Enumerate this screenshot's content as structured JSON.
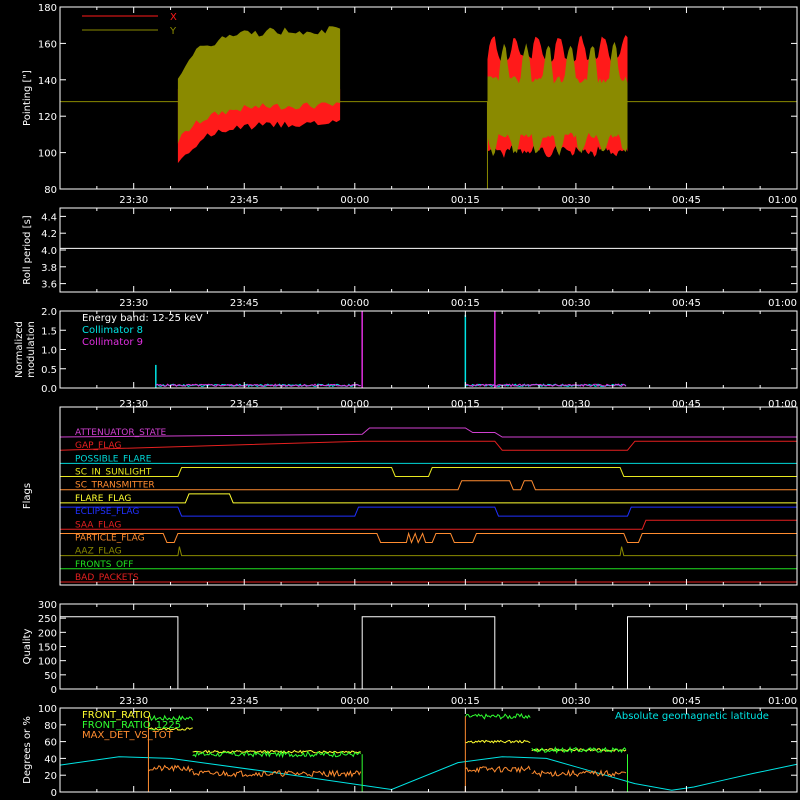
{
  "time_axis": {
    "start": "23:20",
    "end": "01:00",
    "ticks": [
      "23:30",
      "23:45",
      "00:00",
      "00:15",
      "00:30",
      "00:45",
      "01:00"
    ]
  },
  "panels": [
    {
      "id": "pointing",
      "ylabel": "Pointing [\"]",
      "ylim": [
        80,
        180
      ],
      "yticks": [
        "80",
        "100",
        "120",
        "140",
        "160",
        "180"
      ],
      "legend": [
        {
          "name": "X",
          "color": "#ff1a1a"
        },
        {
          "name": "Y",
          "color": "#8a8a00"
        }
      ]
    },
    {
      "id": "roll",
      "ylabel": "Roll period [s]",
      "ylim": [
        3.5,
        4.5
      ],
      "yticks": [
        "3.6",
        "3.8",
        "4.0",
        "4.2",
        "4.4"
      ]
    },
    {
      "id": "modulation",
      "ylabel": [
        "Normalized",
        "modulation"
      ],
      "ylim": [
        0,
        2.0
      ],
      "yticks": [
        "0.0",
        "0.5",
        "1.0",
        "1.5",
        "2.0"
      ],
      "annotations": [
        {
          "text": "Energy band: 12-25 keV",
          "color": "#ffffff"
        },
        {
          "text": "Collimator 8",
          "color": "#00e5e5"
        },
        {
          "text": "Collimator 9",
          "color": "#e030e0"
        }
      ]
    },
    {
      "id": "flags",
      "ylabel": "Flags",
      "flags": [
        {
          "name": "ATTENUATOR_STATE",
          "color": "#d040d0"
        },
        {
          "name": "GAP_FLAG",
          "color": "#e52020"
        },
        {
          "name": "POSSIBLE_FLARE",
          "color": "#00d8d8"
        },
        {
          "name": "SC_IN_SUNLIGHT",
          "color": "#e8e820"
        },
        {
          "name": "SC_TRANSMITTER",
          "color": "#ff8c30"
        },
        {
          "name": "FLARE_FLAG",
          "color": "#ffff30"
        },
        {
          "name": "ECLIPSE_FLAG",
          "color": "#2030ff"
        },
        {
          "name": "SAA_FLAG",
          "color": "#e52020"
        },
        {
          "name": "PARTICLE_FLAG",
          "color": "#ff8c30"
        },
        {
          "name": "AAZ_FLAG",
          "color": "#8a8a00"
        },
        {
          "name": "FRONTS_OFF",
          "color": "#20e020"
        },
        {
          "name": "BAD_PACKETS",
          "color": "#e52020"
        }
      ]
    },
    {
      "id": "quality",
      "ylabel": "Quality",
      "ylim": [
        0,
        300
      ],
      "yticks": [
        "0",
        "50",
        "100",
        "150",
        "200",
        "250",
        "300"
      ]
    },
    {
      "id": "ratios",
      "ylabel": "Degrees or %",
      "ylim": [
        0,
        100
      ],
      "yticks": [
        "0",
        "20",
        "40",
        "60",
        "80",
        "100"
      ],
      "legend": [
        {
          "name": "FRONT_RATIO",
          "color": "#ffff30"
        },
        {
          "name": "FRONT_RATIO_1225",
          "color": "#30ff30"
        },
        {
          "name": "MAX_DET_VS_TOT",
          "color": "#ff8c30"
        }
      ],
      "annotation": {
        "text": "Absolute geomagnetic latitude",
        "color": "#00e5e5"
      }
    }
  ],
  "chart_data": {
    "type": "line",
    "x_unit": "minutes after 23:20 UT",
    "pointing": {
      "baseline": 128,
      "segments": [
        {
          "start": 16,
          "end": 38,
          "x_range": [
            98,
            120
          ],
          "y_range": [
            110,
            165
          ]
        },
        {
          "start": 58,
          "end": 77,
          "x_range": [
            95,
            165
          ],
          "y_range": [
            95,
            165
          ]
        }
      ]
    },
    "roll_period": {
      "x": [
        0,
        100
      ],
      "y": [
        4.02,
        4.02
      ]
    },
    "modulation": {
      "collimator_8": {
        "baseline": 0.07,
        "spikes": [
          [
            13,
            0.6
          ],
          [
            55,
            1.9
          ]
        ]
      },
      "collimator_9": {
        "baseline": 0.07,
        "spikes": [
          [
            41,
            2.0
          ],
          [
            59,
            2.0
          ]
        ]
      },
      "active_intervals": [
        [
          13,
          41
        ],
        [
          55,
          77
        ]
      ]
    },
    "flags": [
      {
        "name": "ATTENUATOR_STATE",
        "transitions": [
          [
            0,
            0
          ],
          [
            41,
            0.3
          ],
          [
            42,
            1
          ],
          [
            55,
            1
          ],
          [
            56,
            0.5
          ],
          [
            59,
            0.5
          ],
          [
            60,
            0
          ]
        ]
      },
      {
        "name": "GAP_FLAG",
        "transitions": [
          [
            0,
            0
          ],
          [
            41,
            1
          ],
          [
            59,
            1
          ],
          [
            60,
            0
          ],
          [
            77,
            0
          ],
          [
            78,
            1
          ],
          [
            100,
            1
          ]
        ]
      },
      {
        "name": "POSSIBLE_FLARE",
        "transitions": [
          [
            0,
            0
          ],
          [
            100,
            0
          ]
        ]
      },
      {
        "name": "SC_IN_SUNLIGHT",
        "transitions": [
          [
            0,
            0
          ],
          [
            16,
            0
          ],
          [
            16.5,
            1
          ],
          [
            45,
            1
          ],
          [
            45.5,
            0
          ],
          [
            50,
            0
          ],
          [
            50.5,
            1
          ],
          [
            76,
            1
          ],
          [
            76.5,
            0
          ],
          [
            100,
            0
          ]
        ]
      },
      {
        "name": "SC_TRANSMITTER",
        "transitions": [
          [
            0,
            0
          ],
          [
            54,
            0
          ],
          [
            54.5,
            1
          ],
          [
            61,
            1
          ],
          [
            61.5,
            0
          ],
          [
            62.5,
            0
          ],
          [
            63,
            1
          ],
          [
            64,
            1
          ],
          [
            64.5,
            0
          ],
          [
            100,
            0
          ]
        ]
      },
      {
        "name": "FLARE_FLAG",
        "transitions": [
          [
            0,
            0
          ],
          [
            17,
            0
          ],
          [
            17.5,
            1
          ],
          [
            23,
            1
          ],
          [
            23.5,
            0
          ],
          [
            100,
            0
          ]
        ]
      },
      {
        "name": "ECLIPSE_FLAG",
        "transitions": [
          [
            0,
            1
          ],
          [
            16,
            1
          ],
          [
            16.5,
            0
          ],
          [
            40,
            0
          ],
          [
            40.5,
            1
          ],
          [
            59,
            1
          ],
          [
            59.5,
            0
          ],
          [
            77,
            0
          ],
          [
            77.5,
            1
          ],
          [
            100,
            1
          ]
        ]
      },
      {
        "name": "SAA_FLAG",
        "transitions": [
          [
            0,
            0
          ],
          [
            79,
            0
          ],
          [
            79.5,
            1
          ],
          [
            100,
            1
          ]
        ]
      },
      {
        "name": "PARTICLE_FLAG",
        "transitions": [
          [
            0,
            1
          ],
          [
            14,
            1
          ],
          [
            14.5,
            0
          ],
          [
            15.5,
            0
          ],
          [
            16,
            1
          ],
          [
            43,
            1
          ],
          [
            43.5,
            0
          ],
          [
            47,
            0
          ],
          [
            47.3,
            1
          ],
          [
            47.7,
            0
          ],
          [
            48.2,
            1
          ],
          [
            48.6,
            0
          ],
          [
            49.2,
            1
          ],
          [
            49.6,
            0
          ],
          [
            50.5,
            0
          ],
          [
            51,
            1
          ],
          [
            53,
            1
          ],
          [
            53.5,
            0
          ],
          [
            56,
            0
          ],
          [
            56.5,
            1
          ],
          [
            76.5,
            1
          ],
          [
            77,
            0
          ],
          [
            78.5,
            0
          ],
          [
            79,
            1
          ],
          [
            100,
            1
          ]
        ]
      },
      {
        "name": "AAZ_FLAG",
        "transitions": [
          [
            0,
            0
          ],
          [
            16,
            0
          ],
          [
            16.2,
            1
          ],
          [
            16.5,
            0
          ],
          [
            76,
            0
          ],
          [
            76.2,
            1
          ],
          [
            76.5,
            0
          ],
          [
            100,
            0
          ]
        ]
      },
      {
        "name": "FRONTS_OFF",
        "transitions": [
          [
            0,
            0
          ],
          [
            100,
            0
          ]
        ]
      },
      {
        "name": "BAD_PACKETS",
        "transitions": [
          [
            0,
            0
          ],
          [
            100,
            0
          ]
        ]
      }
    ],
    "quality": {
      "x": [
        0,
        16,
        16,
        41,
        41,
        59,
        59,
        77,
        77,
        100
      ],
      "y": [
        255,
        255,
        0,
        0,
        255,
        255,
        0,
        0,
        255,
        255
      ]
    },
    "ratios": {
      "active_intervals": [
        [
          12,
          41
        ],
        [
          55,
          77
        ]
      ],
      "FRONT_RATIO": {
        "levels": [
          [
            12,
            18,
            75
          ],
          [
            18,
            41,
            48
          ],
          [
            55,
            64,
            60
          ],
          [
            64,
            77,
            50
          ]
        ]
      },
      "FRONT_RATIO_1225": {
        "levels": [
          [
            12,
            18,
            88
          ],
          [
            18,
            41,
            45
          ],
          [
            55,
            64,
            90
          ],
          [
            64,
            77,
            50
          ]
        ]
      },
      "MAX_DET_VS_TOT": {
        "levels": [
          [
            12,
            18,
            28
          ],
          [
            18,
            41,
            22
          ],
          [
            55,
            64,
            27
          ],
          [
            64,
            77,
            22
          ]
        ]
      },
      "geomagnetic_latitude": {
        "x": [
          0,
          8,
          15,
          30,
          45,
          54,
          60,
          66,
          70,
          74,
          78,
          83,
          86,
          90,
          94,
          100
        ],
        "y": [
          32,
          42,
          40,
          22,
          3,
          35,
          42,
          40,
          30,
          20,
          10,
          2,
          6,
          14,
          22,
          33
        ]
      }
    }
  }
}
